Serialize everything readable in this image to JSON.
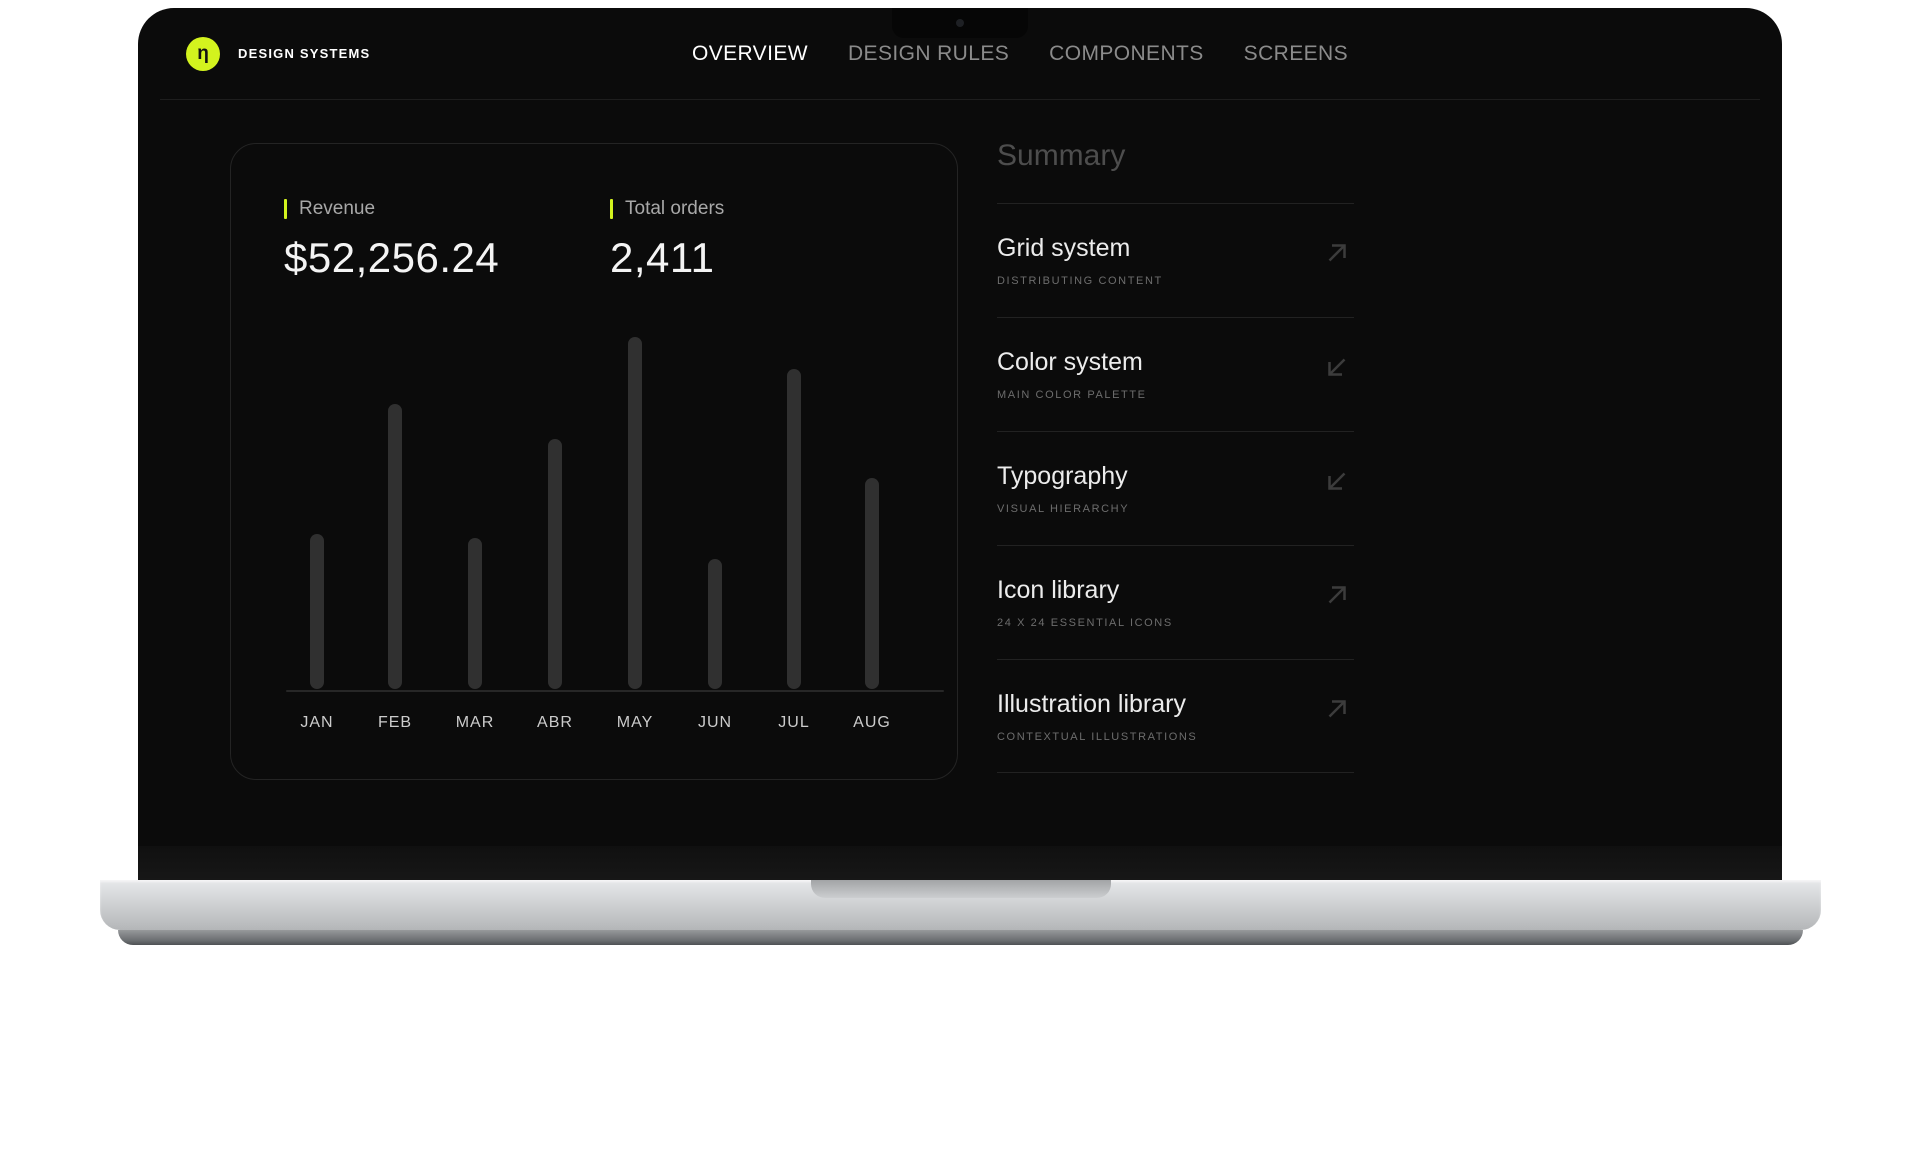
{
  "colors": {
    "accent": "#d3f31e",
    "bar": "#303030"
  },
  "brand": {
    "logo_glyph": "η",
    "name": "DESIGN SYSTEMS"
  },
  "nav": {
    "items": [
      {
        "label": "OVERVIEW",
        "active": true
      },
      {
        "label": "DESIGN RULES",
        "active": false
      },
      {
        "label": "COMPONENTS",
        "active": false
      },
      {
        "label": "SCREENS",
        "active": false
      }
    ]
  },
  "stats": {
    "revenue": {
      "label": "Revenue",
      "value": "$52,256.24"
    },
    "orders": {
      "label": "Total orders",
      "value": "2,411"
    }
  },
  "chart_data": {
    "type": "bar",
    "categories": [
      "JAN",
      "FEB",
      "MAR",
      "ABR",
      "MAY",
      "JUN",
      "JUL",
      "AUG"
    ],
    "values": [
      44,
      81,
      43,
      71,
      100,
      37,
      91,
      60
    ],
    "title": "",
    "xlabel": "",
    "ylabel": "",
    "ylim": [
      0,
      100
    ],
    "grid": false,
    "legend": false
  },
  "summary": {
    "title": "Summary",
    "items": [
      {
        "title": "Grid system",
        "subtitle": "DISTRIBUTING CONTENT",
        "arrow": "up-right"
      },
      {
        "title": "Color system",
        "subtitle": "MAIN COLOR PALETTE",
        "arrow": "down-left"
      },
      {
        "title": "Typography",
        "subtitle": "VISUAL HIERARCHY",
        "arrow": "down-left"
      },
      {
        "title": "Icon library",
        "subtitle": "24 X 24 ESSENTIAL ICONS",
        "arrow": "up-right"
      },
      {
        "title": "Illustration library",
        "subtitle": "CONTEXTUAL ILLUSTRATIONS",
        "arrow": "up-right"
      }
    ]
  }
}
